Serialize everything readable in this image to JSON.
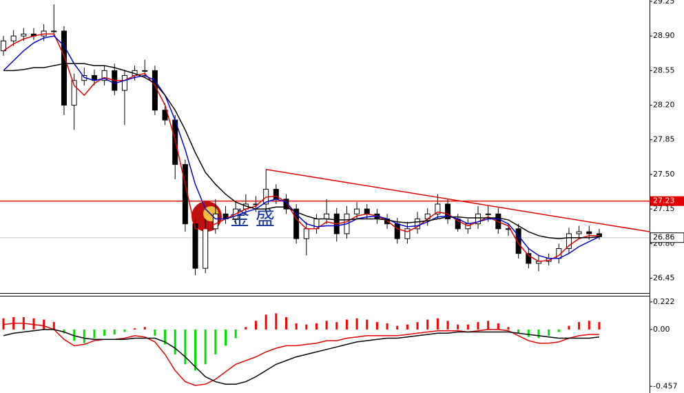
{
  "chart_data": [
    {
      "type": "candlestick",
      "open": [
        28.75,
        28.85,
        28.9,
        28.92,
        28.9,
        28.95,
        28.95,
        28.2,
        28.45,
        28.5,
        28.45,
        28.55,
        28.35,
        28.5,
        28.55,
        28.55,
        28.15,
        28.05,
        27.6,
        27.0,
        26.55,
        26.95,
        27.1,
        27.05,
        27.15,
        27.2,
        27.2,
        27.35,
        27.25,
        27.15,
        26.85,
        26.95,
        27.05,
        27.1,
        26.9,
        27.1,
        27.15,
        27.1,
        27.05,
        27.0,
        26.85,
        26.95,
        27.05,
        27.1,
        27.2,
        27.05,
        26.95,
        27.0,
        27.1,
        27.1,
        26.95,
        26.95,
        26.7,
        26.6,
        26.62,
        26.65,
        26.75,
        26.9,
        26.92,
        26.9
      ],
      "high": [
        28.9,
        28.96,
        28.98,
        28.98,
        29.02,
        29.22,
        29.0,
        28.52,
        28.58,
        28.56,
        28.6,
        28.62,
        28.56,
        28.6,
        28.66,
        28.6,
        28.22,
        28.1,
        27.65,
        27.05,
        27.05,
        27.25,
        27.18,
        27.22,
        27.3,
        27.28,
        27.55,
        27.4,
        27.3,
        27.2,
        27.02,
        27.1,
        27.25,
        27.16,
        27.18,
        27.22,
        27.2,
        27.15,
        27.1,
        27.06,
        27.02,
        27.12,
        27.16,
        27.3,
        27.25,
        27.1,
        27.05,
        27.18,
        27.18,
        27.16,
        27.0,
        27.0,
        26.76,
        26.68,
        26.7,
        26.8,
        26.96,
        26.98,
        26.98,
        26.95
      ],
      "low": [
        28.7,
        28.8,
        28.85,
        28.86,
        28.85,
        28.9,
        28.1,
        27.95,
        28.4,
        28.4,
        28.4,
        28.3,
        28.0,
        28.45,
        28.48,
        28.1,
        28.0,
        27.45,
        26.92,
        26.48,
        26.5,
        26.9,
        27.0,
        27.0,
        27.1,
        27.12,
        27.15,
        27.2,
        27.1,
        26.8,
        26.68,
        26.9,
        27.0,
        26.82,
        26.85,
        27.05,
        27.05,
        27.0,
        26.95,
        26.8,
        26.8,
        26.9,
        26.98,
        27.05,
        27.0,
        26.92,
        26.9,
        26.95,
        27.02,
        26.9,
        26.88,
        26.65,
        26.55,
        26.52,
        26.58,
        26.6,
        26.7,
        26.86,
        26.84,
        26.84
      ],
      "close": [
        28.85,
        28.9,
        28.92,
        28.9,
        28.95,
        28.95,
        28.2,
        28.45,
        28.5,
        28.45,
        28.55,
        28.35,
        28.5,
        28.55,
        28.55,
        28.15,
        28.05,
        27.6,
        27.0,
        26.55,
        26.95,
        27.1,
        27.05,
        27.15,
        27.2,
        27.2,
        27.35,
        27.25,
        27.15,
        26.85,
        26.95,
        27.05,
        27.1,
        26.9,
        27.1,
        27.15,
        27.1,
        27.05,
        27.0,
        26.85,
        26.95,
        27.05,
        27.1,
        27.2,
        27.05,
        26.95,
        27.0,
        27.1,
        27.1,
        26.95,
        26.95,
        26.7,
        26.6,
        26.62,
        26.65,
        26.75,
        26.9,
        26.92,
        26.9,
        26.87
      ],
      "up_color": "#ffffff",
      "down_color": "#000000",
      "ma": [
        {
          "color": "#e00000",
          "values": [
            28.75,
            28.82,
            28.87,
            28.9,
            28.92,
            28.92,
            28.7,
            28.4,
            28.3,
            28.42,
            28.48,
            28.45,
            28.45,
            28.5,
            28.52,
            28.4,
            28.2,
            27.85,
            27.4,
            26.95,
            26.95,
            27.0,
            27.05,
            27.1,
            27.15,
            27.18,
            27.27,
            27.28,
            27.22,
            27.05,
            26.95,
            26.95,
            27.02,
            27.0,
            27.02,
            27.08,
            27.1,
            27.08,
            27.03,
            26.95,
            26.92,
            26.97,
            27.05,
            27.12,
            27.1,
            27.03,
            26.98,
            27.02,
            27.07,
            27.02,
            26.98,
            26.8,
            26.68,
            26.62,
            26.63,
            26.68,
            26.78,
            26.85,
            26.88,
            26.88
          ]
        },
        {
          "color": "#0000d0",
          "values": [
            28.55,
            28.65,
            28.75,
            28.83,
            28.88,
            28.9,
            28.8,
            28.62,
            28.48,
            28.45,
            28.47,
            28.42,
            28.45,
            28.48,
            28.5,
            28.45,
            28.3,
            28.05,
            27.75,
            27.4,
            27.15,
            27.05,
            27.05,
            27.08,
            27.12,
            27.15,
            27.22,
            27.25,
            27.22,
            27.1,
            27.0,
            26.97,
            26.98,
            26.98,
            27.0,
            27.05,
            27.07,
            27.08,
            27.05,
            27.0,
            26.97,
            26.98,
            27.02,
            27.07,
            27.08,
            27.05,
            27.0,
            27.02,
            27.05,
            27.05,
            27.0,
            26.88,
            26.75,
            26.68,
            26.65,
            26.65,
            26.7,
            26.77,
            26.82,
            26.87
          ]
        },
        {
          "color": "#000000",
          "values": [
            28.55,
            28.55,
            28.56,
            28.58,
            28.58,
            28.6,
            28.62,
            28.62,
            28.62,
            28.6,
            28.6,
            28.58,
            28.55,
            28.52,
            28.48,
            28.42,
            28.3,
            28.15,
            27.95,
            27.72,
            27.52,
            27.4,
            27.3,
            27.22,
            27.18,
            27.15,
            27.15,
            27.17,
            27.17,
            27.12,
            27.08,
            27.05,
            27.05,
            27.04,
            27.04,
            27.05,
            27.05,
            27.05,
            27.04,
            27.02,
            27.01,
            27.02,
            27.03,
            27.05,
            27.07,
            27.07,
            27.06,
            27.06,
            27.06,
            27.06,
            27.04,
            26.98,
            26.92,
            26.88,
            26.86,
            26.85,
            26.86,
            26.86,
            26.86,
            26.87
          ]
        }
      ],
      "ylim": [
        26.3,
        29.25
      ],
      "yticks": [
        29.25,
        {
          "value": 28.9,
          "label": "28.90"
        },
        28.55,
        {
          "value": 28.2,
          "label": "28.20"
        },
        27.85,
        {
          "value": 27.5,
          "label": "27.50"
        },
        27.15,
        {
          "value": 26.8,
          "label": "26.80"
        },
        26.45
      ],
      "hline": {
        "value": 27.23,
        "color": "#e00000"
      },
      "last_price": {
        "value": 26.86,
        "color": "#c8c8c8"
      },
      "trendline": {
        "x": [
          26,
          64
        ],
        "y": [
          27.55,
          26.92
        ],
        "color": "#e00000"
      },
      "watermark": "金 盛"
    },
    {
      "type": "macd",
      "histogram": [
        0.09,
        0.1,
        0.1,
        0.09,
        0.08,
        0.06,
        -0.03,
        -0.09,
        -0.11,
        -0.07,
        -0.05,
        -0.04,
        -0.02,
        0.01,
        0.02,
        -0.05,
        -0.12,
        -0.2,
        -0.28,
        -0.33,
        -0.28,
        -0.2,
        -0.13,
        -0.07,
        0.02,
        0.07,
        0.12,
        0.13,
        0.1,
        0.05,
        0.04,
        0.05,
        0.07,
        0.06,
        0.08,
        0.09,
        0.08,
        0.06,
        0.05,
        0.03,
        0.04,
        0.06,
        0.08,
        0.09,
        0.07,
        0.04,
        0.04,
        0.06,
        0.07,
        0.05,
        0.02,
        -0.03,
        -0.06,
        -0.07,
        -0.05,
        -0.02,
        0.03,
        0.06,
        0.07,
        0.06
      ],
      "up_color": "#ff0000",
      "down_color": "#00e000",
      "lines": [
        {
          "color": "#e00000",
          "values": [
            0.04,
            0.05,
            0.05,
            0.04,
            0.03,
            0,
            -0.08,
            -0.13,
            -0.12,
            -0.09,
            -0.08,
            -0.08,
            -0.07,
            -0.05,
            -0.06,
            -0.1,
            -0.2,
            -0.33,
            -0.42,
            -0.45,
            -0.44,
            -0.4,
            -0.34,
            -0.28,
            -0.25,
            -0.22,
            -0.18,
            -0.15,
            -0.13,
            -0.13,
            -0.12,
            -0.11,
            -0.09,
            -0.09,
            -0.07,
            -0.06,
            -0.05,
            -0.05,
            -0.05,
            -0.05,
            -0.04,
            -0.03,
            -0.02,
            -0.01,
            -0.01,
            -0.01,
            -0.02,
            -0.01,
            0,
            0,
            -0.01,
            -0.05,
            -0.09,
            -0.11,
            -0.11,
            -0.1,
            -0.07,
            -0.05,
            -0.04,
            -0.04
          ]
        },
        {
          "color": "#000000",
          "values": [
            -0.05,
            -0.03,
            -0.02,
            -0.01,
            0,
            0,
            -0.02,
            -0.05,
            -0.07,
            -0.08,
            -0.08,
            -0.08,
            -0.08,
            -0.07,
            -0.07,
            -0.07,
            -0.1,
            -0.15,
            -0.22,
            -0.3,
            -0.38,
            -0.42,
            -0.44,
            -0.44,
            -0.42,
            -0.38,
            -0.33,
            -0.28,
            -0.25,
            -0.22,
            -0.2,
            -0.18,
            -0.16,
            -0.14,
            -0.12,
            -0.1,
            -0.09,
            -0.08,
            -0.07,
            -0.07,
            -0.06,
            -0.05,
            -0.04,
            -0.03,
            -0.03,
            -0.02,
            -0.02,
            -0.02,
            -0.02,
            -0.02,
            -0.02,
            -0.03,
            -0.04,
            -0.05,
            -0.06,
            -0.07,
            -0.07,
            -0.07,
            -0.07,
            -0.06
          ]
        }
      ],
      "ylim": [
        -0.511,
        0.266
      ],
      "yticks": [
        0.222,
        {
          "value": 0,
          "label": "0.00"
        },
        -0.457
      ]
    }
  ]
}
